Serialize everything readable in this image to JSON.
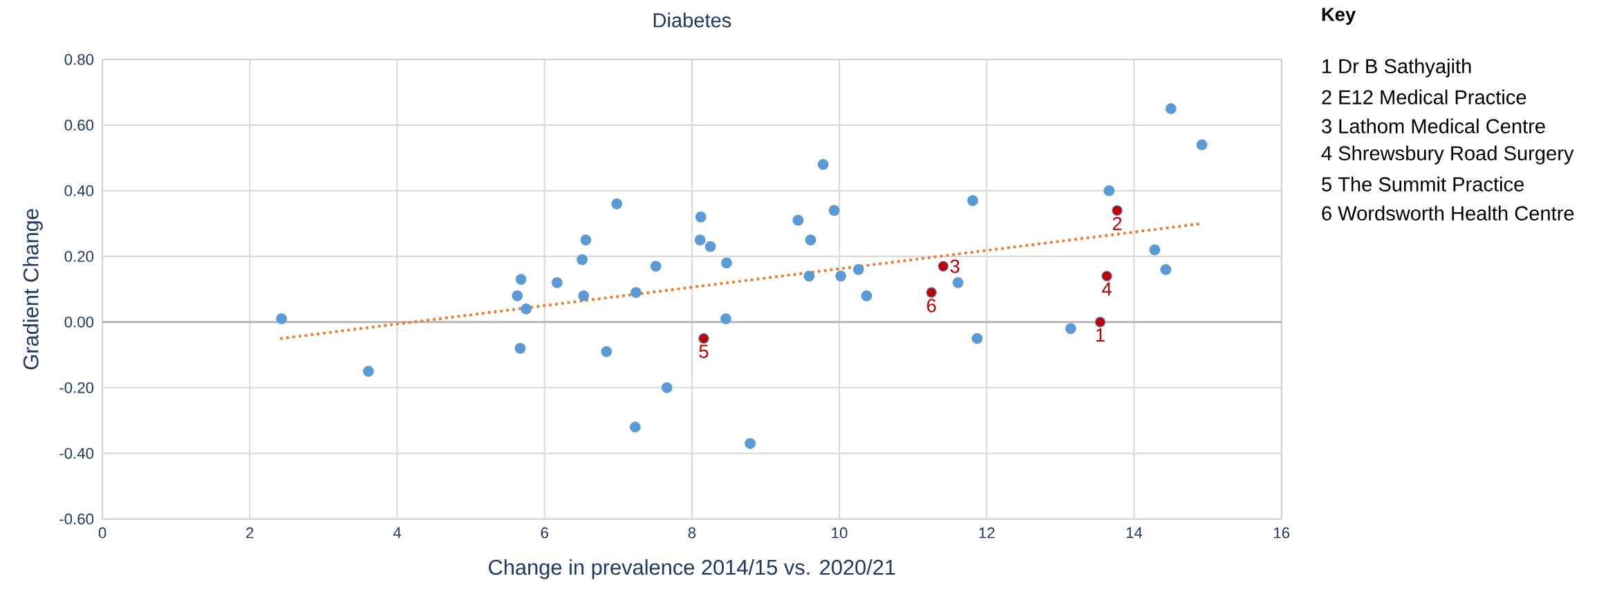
{
  "chart_data": {
    "type": "scatter",
    "title": "Diabetes",
    "xlabel": "Change in prevalence 2014/15 vs. 2020/21",
    "ylabel": "Gradient Change",
    "xlim": [
      0,
      16
    ],
    "xticks": [
      0,
      2,
      4,
      6,
      8,
      10,
      12,
      14,
      16
    ],
    "ylim": [
      -0.6,
      0.8
    ],
    "yticks": [
      {
        "value": -0.6,
        "label": "-0.60"
      },
      {
        "value": -0.4,
        "label": "-0.40"
      },
      {
        "value": -0.2,
        "label": "-0.20"
      },
      {
        "value": 0,
        "label": "0.00"
      },
      {
        "value": 0.2,
        "label": "0.20"
      },
      {
        "value": 0.4,
        "label": "0.40"
      },
      {
        "value": 0.6,
        "label": "0.60"
      },
      {
        "value": 0.8,
        "label": "0.80"
      }
    ],
    "grid": true,
    "marker": "circle",
    "series": [
      {
        "color": "#5b9bd5",
        "x": [
          2.43,
          3.61,
          5.68,
          5.63,
          5.75,
          5.67,
          6.17,
          6.56,
          6.51,
          6.53,
          6.98,
          6.84,
          7.51,
          7.24,
          7.66,
          7.23,
          8.12,
          8.11,
          8.25,
          8.47,
          8.46,
          8.79,
          9.44,
          9.61,
          9.59,
          9.78,
          9.93,
          10.02,
          10.26,
          10.37,
          11.61,
          11.81,
          11.87,
          13.14,
          13.66,
          14.28,
          14.43,
          14.5,
          14.92
        ],
        "values": [
          0.01,
          -0.15,
          0.13,
          0.08,
          0.04,
          -0.08,
          0.12,
          0.25,
          0.19,
          0.08,
          0.36,
          -0.09,
          0.17,
          0.09,
          -0.2,
          -0.32,
          0.32,
          0.25,
          0.23,
          0.18,
          0.01,
          -0.37,
          0.31,
          0.25,
          0.14,
          0.48,
          0.34,
          0.14,
          0.16,
          0.08,
          0.12,
          0.37,
          -0.05,
          -0.02,
          0.4,
          0.22,
          0.16,
          0.65,
          0.54
        ]
      },
      {
        "color": "#c00000",
        "x": [
          13.54,
          13.77,
          11.41,
          13.63,
          8.16,
          11.25
        ],
        "values": [
          0.0,
          0.34,
          0.17,
          0.14,
          -0.05,
          0.09
        ]
      },
      {
        "type": "line",
        "color": "#ed7d31",
        "line_style": "dotted",
        "marker": "none",
        "x": [
          2.43,
          14.92
        ],
        "values": [
          -0.05,
          0.3
        ]
      }
    ],
    "annotations": [
      {
        "text": "1",
        "x": 13.54,
        "y": 0.0
      },
      {
        "text": "2",
        "x": 13.77,
        "y": 0.34
      },
      {
        "text": "3",
        "x": 11.41,
        "y": 0.17
      },
      {
        "text": "4",
        "x": 13.63,
        "y": 0.14
      },
      {
        "text": "5",
        "x": 8.16,
        "y": -0.05
      },
      {
        "text": "6",
        "x": 11.25,
        "y": 0.09
      },
      "Key",
      "1 Dr B Sathyajith",
      "2 E12 Medical Practice",
      "3 Lathom Medical Centre",
      "4 Shrewsbury Road Surgery",
      "5 The Summit Practice",
      "6 Wordsworth Health Centre"
    ]
  }
}
